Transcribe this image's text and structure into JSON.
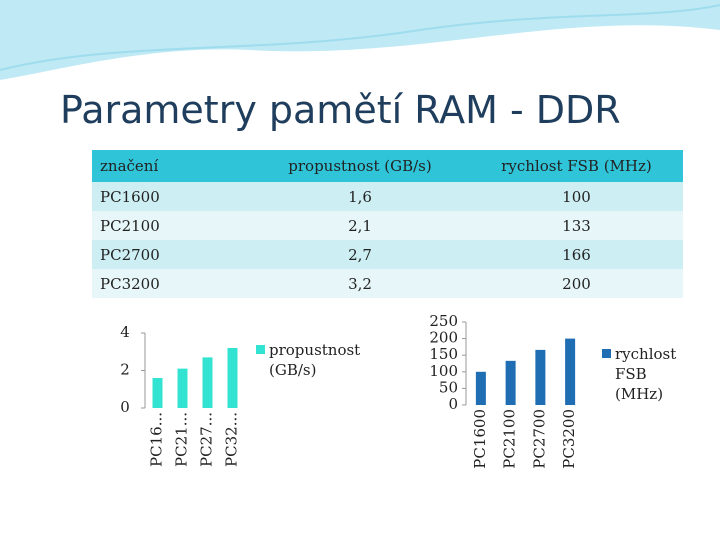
{
  "title": "Parametry pamětí RAM - DDR",
  "table": {
    "header": [
      "značení",
      "propustnost (GB/s)",
      "rychlost FSB (MHz)"
    ],
    "rows": [
      [
        "PC1600",
        "1,6",
        "100"
      ],
      [
        "PC2100",
        "2,1",
        "133"
      ],
      [
        "PC2700",
        "2,7",
        "166"
      ],
      [
        "PC3200",
        "3,2",
        "200"
      ]
    ]
  },
  "chart_data": [
    {
      "type": "bar",
      "categories": [
        "PC16...",
        "PC21...",
        "PC27...",
        "PC32..."
      ],
      "series": [
        {
          "name": "propustnost (GB/s)",
          "color": "#33e3d2",
          "values": [
            1.6,
            2.1,
            2.7,
            3.2
          ]
        }
      ],
      "ylim": [
        0,
        4
      ],
      "yticks": [
        0,
        2,
        4
      ]
    },
    {
      "type": "bar",
      "categories": [
        "PC1600",
        "PC2100",
        "PC2700",
        "PC3200"
      ],
      "series": [
        {
          "name": "rychlost FSB (MHz)",
          "color": "#1f6db3",
          "values": [
            100,
            133,
            166,
            200
          ]
        }
      ],
      "ylim": [
        0,
        250
      ],
      "yticks": [
        0,
        50,
        100,
        150,
        200,
        250
      ]
    }
  ]
}
